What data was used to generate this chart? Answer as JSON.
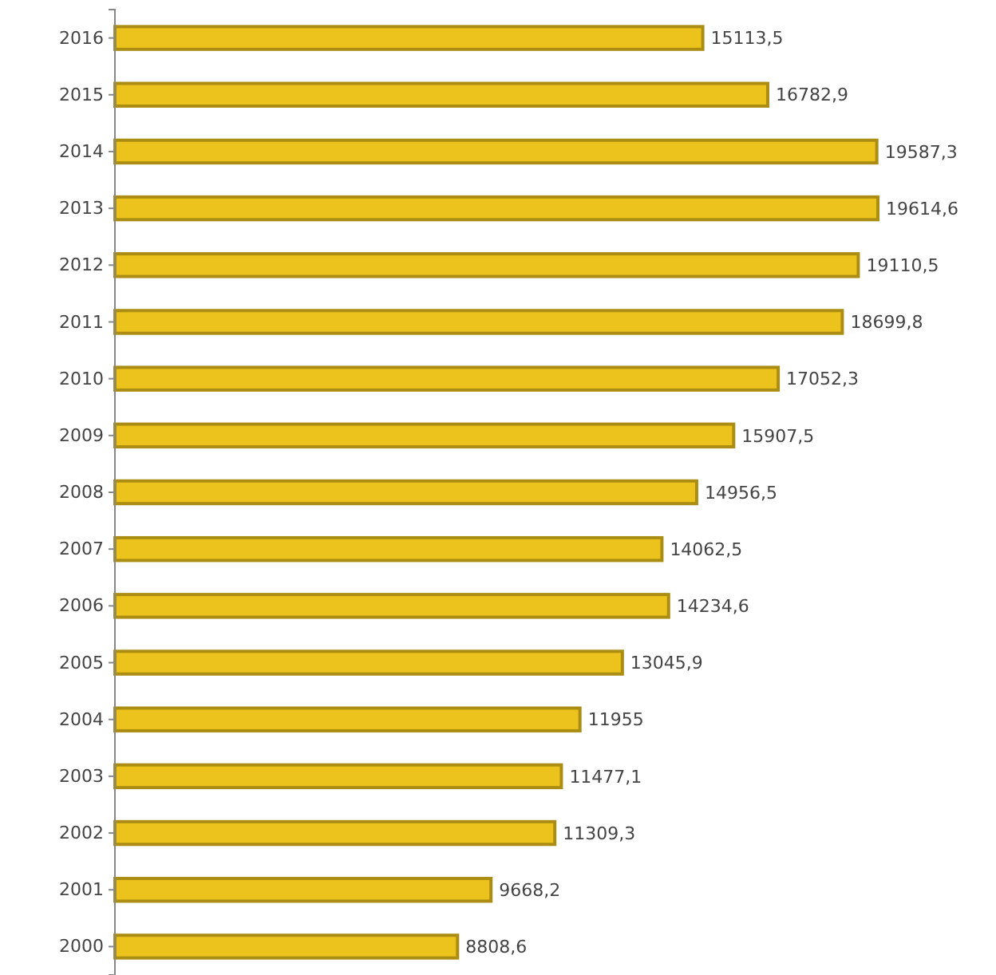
{
  "chart_data": {
    "type": "bar",
    "orientation": "horizontal",
    "categories": [
      "2016",
      "2015",
      "2014",
      "2013",
      "2012",
      "2011",
      "2010",
      "2009",
      "2008",
      "2007",
      "2006",
      "2005",
      "2004",
      "2003",
      "2002",
      "2001",
      "2000"
    ],
    "values": [
      15113.5,
      16782.9,
      19587.3,
      19614.6,
      19110.5,
      18699.8,
      17052.3,
      15907.5,
      14956.5,
      14062.5,
      14234.6,
      13045.9,
      11955,
      11477.1,
      11309.3,
      9668.2,
      8808.6
    ],
    "value_labels": [
      "15113,5",
      "16782,9",
      "19587,3",
      "19614,6",
      "19110,5",
      "18699,8",
      "17052,3",
      "15907,5",
      "14956,5",
      "14062,5",
      "14234,6",
      "13045,9",
      "11955",
      "11477,1",
      "11309,3",
      "9668,2",
      "8808,6"
    ],
    "color": "#ecc21c"
  }
}
